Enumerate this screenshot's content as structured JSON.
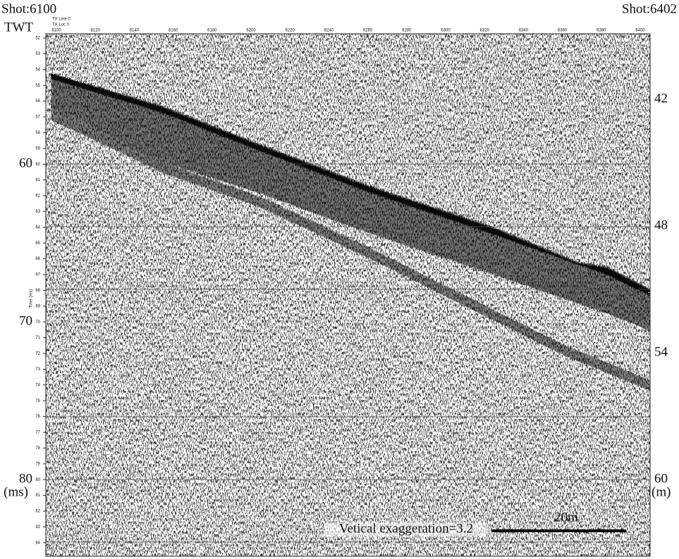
{
  "header": {
    "left": "Shot:6100",
    "right": "Shot:6402"
  },
  "left_axis": {
    "title": "TWT",
    "labels": [
      "60",
      "70",
      "80"
    ],
    "unit": "(ms)",
    "minor_title": "Time (ms)",
    "minor_labels": [
      "52",
      "53",
      "54",
      "55",
      "56",
      "57",
      "58",
      "59",
      "60",
      "61",
      "62",
      "63",
      "64",
      "65",
      "66",
      "67",
      "68",
      "69",
      "70",
      "71",
      "72",
      "73",
      "74",
      "75",
      "76",
      "77",
      "78",
      "79",
      "80",
      "81",
      "82",
      "83",
      "84"
    ]
  },
  "right_axis": {
    "labels": [
      "42",
      "48",
      "54",
      "60"
    ],
    "unit": "(m)"
  },
  "top_axis": {
    "line_labels": [
      "TX Line 0",
      "TX Loc 0"
    ],
    "labels": [
      "6100",
      "6120",
      "6140",
      "6160",
      "6180",
      "6200",
      "6220",
      "6240",
      "6260",
      "6280",
      "6300",
      "6320",
      "6340",
      "6360",
      "6380",
      "6400"
    ]
  },
  "annotation": {
    "exaggeration": "Vetical exaggeration=3.2",
    "scale": "20m"
  }
}
